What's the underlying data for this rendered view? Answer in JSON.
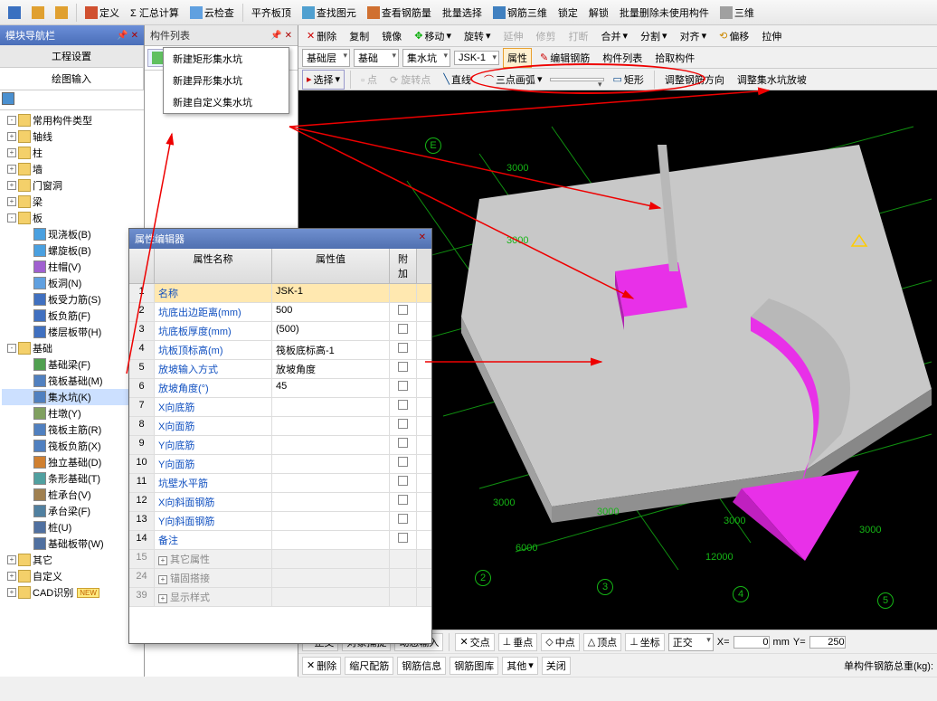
{
  "toolbar": {
    "items": [
      "定义",
      "Σ 汇总计算",
      "云检查",
      "平齐板顶",
      "查找图元",
      "查看钢筋量",
      "批量选择",
      "钢筋三维",
      "锁定",
      "解锁",
      "批量删除未使用构件",
      "三维"
    ]
  },
  "left_panel": {
    "title": "模块导航栏",
    "tabs": [
      "工程设置",
      "绘图输入"
    ],
    "active_tab": 1,
    "tree": [
      {
        "ind": 0,
        "exp": "-",
        "icon": "folder",
        "label": "常用构件类型"
      },
      {
        "ind": 0,
        "exp": "+",
        "icon": "folder",
        "label": "轴线"
      },
      {
        "ind": 0,
        "exp": "+",
        "icon": "folder",
        "label": "柱"
      },
      {
        "ind": 0,
        "exp": "+",
        "icon": "folder",
        "label": "墙"
      },
      {
        "ind": 0,
        "exp": "+",
        "icon": "folder",
        "label": "门窗洞"
      },
      {
        "ind": 0,
        "exp": "+",
        "icon": "folder",
        "label": "梁"
      },
      {
        "ind": 0,
        "exp": "-",
        "icon": "folder",
        "label": "板"
      },
      {
        "ind": 1,
        "exp": "",
        "icon": "leaf",
        "color": "#4aa0e0",
        "label": "现浇板(B)"
      },
      {
        "ind": 1,
        "exp": "",
        "icon": "leaf",
        "color": "#4aa0e0",
        "label": "螺旋板(B)"
      },
      {
        "ind": 1,
        "exp": "",
        "icon": "leaf",
        "color": "#a060d0",
        "label": "柱帽(V)"
      },
      {
        "ind": 1,
        "exp": "",
        "icon": "leaf",
        "color": "#60a0e0",
        "label": "板洞(N)"
      },
      {
        "ind": 1,
        "exp": "",
        "icon": "leaf",
        "color": "#4070c0",
        "label": "板受力筋(S)"
      },
      {
        "ind": 1,
        "exp": "",
        "icon": "leaf",
        "color": "#4070c0",
        "label": "板负筋(F)"
      },
      {
        "ind": 1,
        "exp": "",
        "icon": "leaf",
        "color": "#4070c0",
        "label": "楼层板带(H)"
      },
      {
        "ind": 0,
        "exp": "-",
        "icon": "folder",
        "label": "基础"
      },
      {
        "ind": 1,
        "exp": "",
        "icon": "leaf",
        "color": "#50a050",
        "label": "基础梁(F)"
      },
      {
        "ind": 1,
        "exp": "",
        "icon": "leaf",
        "color": "#5080c0",
        "label": "筏板基础(M)"
      },
      {
        "ind": 1,
        "exp": "",
        "icon": "leaf",
        "color": "#5080c0",
        "label": "集水坑(K)",
        "sel": true
      },
      {
        "ind": 1,
        "exp": "",
        "icon": "leaf",
        "color": "#80a060",
        "label": "柱墩(Y)"
      },
      {
        "ind": 1,
        "exp": "",
        "icon": "leaf",
        "color": "#5080c0",
        "label": "筏板主筋(R)"
      },
      {
        "ind": 1,
        "exp": "",
        "icon": "leaf",
        "color": "#5080c0",
        "label": "筏板负筋(X)"
      },
      {
        "ind": 1,
        "exp": "",
        "icon": "leaf",
        "color": "#d08030",
        "label": "独立基础(D)"
      },
      {
        "ind": 1,
        "exp": "",
        "icon": "leaf",
        "color": "#50a0a0",
        "label": "条形基础(T)"
      },
      {
        "ind": 1,
        "exp": "",
        "icon": "leaf",
        "color": "#a08050",
        "label": "桩承台(V)"
      },
      {
        "ind": 1,
        "exp": "",
        "icon": "leaf",
        "color": "#5080a0",
        "label": "承台梁(F)"
      },
      {
        "ind": 1,
        "exp": "",
        "icon": "leaf",
        "color": "#5070a0",
        "label": "桩(U)"
      },
      {
        "ind": 1,
        "exp": "",
        "icon": "leaf",
        "color": "#5070a0",
        "label": "基础板带(W)"
      },
      {
        "ind": 0,
        "exp": "+",
        "icon": "folder",
        "label": "其它"
      },
      {
        "ind": 0,
        "exp": "+",
        "icon": "folder",
        "label": "自定义"
      },
      {
        "ind": 0,
        "exp": "+",
        "icon": "folder",
        "label": "CAD识别",
        "badge": "NEW"
      }
    ]
  },
  "mid_panel": {
    "title": "构件列表",
    "new_btn": "新建",
    "menu_items": [
      "新建矩形集水坑",
      "新建异形集水坑",
      "新建自定义集水坑"
    ]
  },
  "vp_toolbar1": [
    "删除",
    "复制",
    "镜像",
    "移动",
    "旋转",
    "延伸",
    "修剪",
    "打断",
    "合并",
    "分割",
    "对齐",
    "偏移",
    "拉伸"
  ],
  "vp_combos": {
    "c1": "基础层",
    "c2": "基础",
    "c3": "集水坑",
    "c4": "JSK-1"
  },
  "vp_btns2": [
    "属性",
    "编辑钢筋",
    "构件列表",
    "拾取构件"
  ],
  "vp_toolbar3": {
    "select": "选择",
    "line": "直线",
    "arc": "三点画弧",
    "rect": "矩形",
    "adjust1": "调整钢筋方向",
    "adjust2": "调整集水坑放坡"
  },
  "canvas": {
    "axis_e": "E",
    "dims": [
      "3000",
      "3000",
      "3000",
      "3000",
      "3000",
      "3000",
      "6000",
      "12000"
    ],
    "axis_nums": [
      "2",
      "3",
      "4",
      "5"
    ]
  },
  "prop_dialog": {
    "title": "属性编辑器",
    "headers": {
      "name": "属性名称",
      "value": "属性值",
      "add": "附加"
    },
    "rows": [
      {
        "idx": "1",
        "name": "名称",
        "val": "JSK-1",
        "sel": true,
        "chk": false
      },
      {
        "idx": "2",
        "name": "坑底出边距离(mm)",
        "val": "500",
        "chk": true
      },
      {
        "idx": "3",
        "name": "坑底板厚度(mm)",
        "val": "(500)",
        "chk": true
      },
      {
        "idx": "4",
        "name": "坑板顶标高(m)",
        "val": "筏板底标高-1",
        "chk": true
      },
      {
        "idx": "5",
        "name": "放坡输入方式",
        "val": "放坡角度",
        "chk": true
      },
      {
        "idx": "6",
        "name": "放坡角度(°)",
        "val": "45",
        "chk": true
      },
      {
        "idx": "7",
        "name": "X向底筋",
        "val": "",
        "chk": true
      },
      {
        "idx": "8",
        "name": "X向面筋",
        "val": "",
        "chk": true
      },
      {
        "idx": "9",
        "name": "Y向底筋",
        "val": "",
        "chk": true
      },
      {
        "idx": "10",
        "name": "Y向面筋",
        "val": "",
        "chk": true
      },
      {
        "idx": "11",
        "name": "坑壁水平筋",
        "val": "",
        "chk": true
      },
      {
        "idx": "12",
        "name": "X向斜面钢筋",
        "val": "",
        "chk": true
      },
      {
        "idx": "13",
        "name": "Y向斜面钢筋",
        "val": "",
        "chk": true
      },
      {
        "idx": "14",
        "name": "备注",
        "val": "",
        "chk": true
      }
    ],
    "groups": [
      {
        "idx": "15",
        "name": "其它属性"
      },
      {
        "idx": "24",
        "name": "锚固搭接"
      },
      {
        "idx": "39",
        "name": "显示样式"
      }
    ]
  },
  "status1": {
    "ortho": "正交",
    "snap": "对象捕捉",
    "dyn": "动态输入",
    "cross": "交点",
    "perp": "垂点",
    "mid": "中点",
    "top": "顶点",
    "coord": "坐标",
    "combo": "正交",
    "x": "X=",
    "xv": "0",
    "unit": "mm",
    "y": "Y=",
    "yv": "250"
  },
  "status2": {
    "b1": "删除",
    "b2": "缩尺配筋",
    "b3": "钢筋信息",
    "b4": "钢筋图库",
    "b5": "其他",
    "b6": "关闭",
    "label": "单构件钢筋总重(kg):"
  }
}
